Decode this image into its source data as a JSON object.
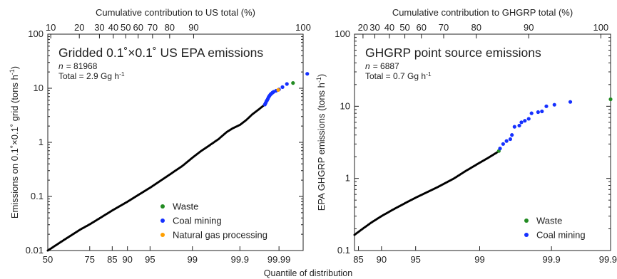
{
  "figure": {
    "shared_xlabel": "Quantile of distribution"
  },
  "chart_data": [
    {
      "type": "scatter",
      "title": "Gridded 0.1˚×0.1˚ US EPA emissions",
      "n_label": "n",
      "n_value": "= 81968",
      "total_label": "Total = 2.9 Gg h",
      "total_exp": "-1",
      "ylabel": "Emissions on 0.1˚×0.1˚ grid (tons h",
      "ylabel_exp": "-1",
      "ylabel_close": ")",
      "top_xlabel": "Cumulative contribution to US total (%)",
      "yscale": "log",
      "ylim": [
        0.01,
        100
      ],
      "xscale": "normal-quantile",
      "xlim": [
        50,
        99.998
      ],
      "yticks": [
        0.01,
        0.1,
        1,
        10,
        100
      ],
      "ytick_labels": [
        "0.01",
        "0.1",
        "1",
        "10",
        "100"
      ],
      "xticks": [
        50,
        75,
        85,
        90,
        95,
        99,
        99.9,
        99.99
      ],
      "xtick_labels": [
        "50",
        "75",
        "85",
        "90",
        "95",
        "99",
        "99.9",
        "99.99"
      ],
      "top_ticks": [
        {
          "q": 51.9,
          "label": "10"
        },
        {
          "q": 69.4,
          "label": "20"
        },
        {
          "q": 79.7,
          "label": "30"
        },
        {
          "q": 85.4,
          "label": "40"
        },
        {
          "q": 89.5,
          "label": "50"
        },
        {
          "q": 92.7,
          "label": "60"
        },
        {
          "q": 95.4,
          "label": "70"
        },
        {
          "q": 97.5,
          "label": "80"
        },
        {
          "q": 99.05,
          "label": "90"
        },
        {
          "q": 99.998,
          "label": "100"
        }
      ],
      "background_series": {
        "name": "",
        "color": "#000000",
        "q": [
          50,
          60,
          70,
          75,
          80,
          85,
          90,
          93,
          95,
          97,
          98,
          98.5,
          99,
          99.3,
          99.5,
          99.7,
          99.8,
          99.85,
          99.9,
          99.93,
          99.95,
          99.97,
          99.975
        ],
        "y": [
          0.01,
          0.0155,
          0.0245,
          0.0305,
          0.04,
          0.055,
          0.08,
          0.11,
          0.145,
          0.22,
          0.3,
          0.37,
          0.52,
          0.68,
          0.84,
          1.15,
          1.55,
          1.8,
          2.1,
          2.6,
          3.3,
          4.4,
          4.9
        ]
      },
      "legend": [
        {
          "name": "Waste",
          "color": "#228b22"
        },
        {
          "name": "Coal mining",
          "color": "#1530ff"
        },
        {
          "name": "Natural gas processing",
          "color": "#ff9f00"
        }
      ],
      "series": [
        {
          "name": "Waste",
          "color": "#228b22",
          "q": [
            99.996
          ],
          "y": [
            12.5
          ]
        },
        {
          "name": "Coal mining",
          "color": "#1530ff",
          "q": [
            99.976,
            99.977,
            99.978,
            99.979,
            99.98,
            99.981,
            99.982,
            99.983,
            99.984,
            99.985,
            99.986,
            99.988,
            99.99,
            99.992,
            99.994,
            99.9985
          ],
          "y": [
            5.0,
            5.3,
            5.7,
            6.0,
            6.4,
            6.9,
            7.3,
            7.7,
            8.0,
            8.3,
            8.6,
            9.0,
            9.5,
            10.5,
            12.0,
            18.5
          ]
        },
        {
          "name": "Natural gas processing",
          "color": "#ff9f00",
          "q": [
            99.9895
          ],
          "y": [
            9.3
          ]
        }
      ]
    },
    {
      "type": "scatter",
      "title": "GHGRP point source emissions",
      "n_label": "n",
      "n_value": "= 6887",
      "total_label": "Total = 0.7 Gg h",
      "total_exp": "-1",
      "ylabel": "EPA GHGRP emissions (tons h",
      "ylabel_exp": "-1",
      "ylabel_close": ")",
      "top_xlabel": "Cumulative contribution to GHGRP total (%)",
      "yscale": "log",
      "ylim": [
        0.1,
        100
      ],
      "xscale": "normal-quantile",
      "xlim": [
        84,
        99.99
      ],
      "yticks": [
        0.1,
        1,
        10,
        100
      ],
      "ytick_labels": [
        "0.1",
        "1",
        "10",
        "100"
      ],
      "xticks": [
        85,
        90,
        95,
        99,
        99.9,
        99.99
      ],
      "xtick_labels": [
        "85",
        "90",
        "95",
        "99",
        "99.9",
        "99.99"
      ],
      "top_ticks": [
        {
          "q": 86.1,
          "label": "20"
        },
        {
          "q": 88.7,
          "label": "30"
        },
        {
          "q": 91.4,
          "label": "40"
        },
        {
          "q": 93.7,
          "label": "50"
        },
        {
          "q": 95.6,
          "label": "60"
        },
        {
          "q": 97.4,
          "label": "70"
        },
        {
          "q": 98.9,
          "label": "80"
        },
        {
          "q": 99.78,
          "label": "90"
        },
        {
          "q": 99.985,
          "label": "100"
        }
      ],
      "background_series": {
        "name": "",
        "color": "#000000",
        "q": [
          84,
          86,
          88,
          90,
          92,
          94,
          95,
          96,
          97,
          98,
          98.5,
          99,
          99.2,
          99.4
        ],
        "y": [
          0.165,
          0.2,
          0.245,
          0.3,
          0.37,
          0.47,
          0.54,
          0.63,
          0.76,
          1.0,
          1.25,
          1.65,
          1.9,
          2.3
        ]
      },
      "legend": [
        {
          "name": "Waste",
          "color": "#228b22"
        },
        {
          "name": "Coal mining",
          "color": "#1530ff"
        }
      ],
      "series": [
        {
          "name": "Waste",
          "color": "#228b22",
          "q": [
            99.43,
            99.99
          ],
          "y": [
            2.4,
            12.5
          ]
        },
        {
          "name": "Coal mining",
          "color": "#1530ff",
          "q": [
            99.45,
            99.5,
            99.55,
            99.6,
            99.62,
            99.65,
            99.7,
            99.72,
            99.75,
            99.78,
            99.8,
            99.84,
            99.86,
            99.88,
            99.91,
            99.95
          ],
          "y": [
            2.6,
            3.0,
            3.3,
            3.5,
            4.0,
            5.2,
            5.4,
            6.0,
            6.3,
            6.7,
            8.0,
            8.3,
            8.5,
            10.0,
            10.5,
            11.5
          ]
        }
      ]
    }
  ]
}
